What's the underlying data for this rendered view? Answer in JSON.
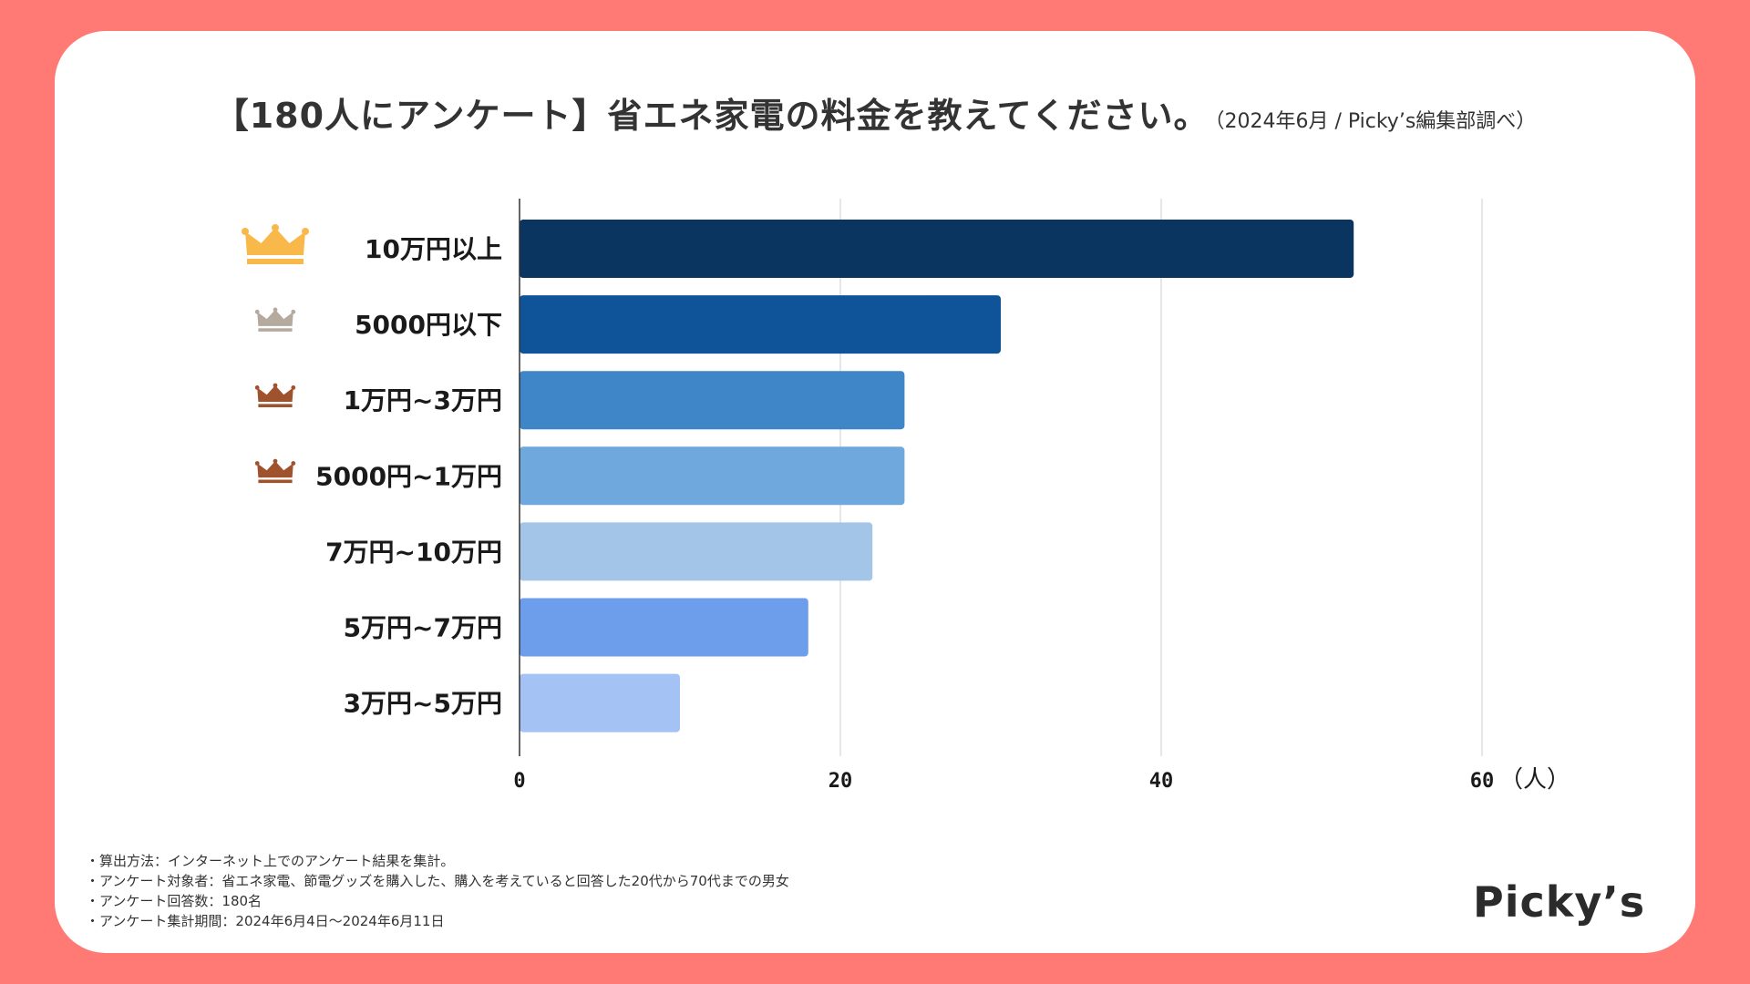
{
  "header": {
    "title": "【180人にアンケート】省エネ家電の料金を教えてください。",
    "subtitle": "（2024年6月 / Picky’s編集部調べ）"
  },
  "chart_data": {
    "type": "bar",
    "orientation": "horizontal",
    "title": "【180人にアンケート】省エネ家電の料金を教えてください。",
    "categories": [
      "10万円以上",
      "5000円以下",
      "1万円~3万円",
      "5000円~1万円",
      "7万円~10万円",
      "5万円~7万円",
      "3万円~5万円"
    ],
    "values": [
      52,
      30,
      24,
      24,
      22,
      18,
      10
    ],
    "bar_colors": [
      "#0a3560",
      "#0f5498",
      "#3f86c9",
      "#6fa8dc",
      "#a3c6e8",
      "#6d9eeb",
      "#a4c2f4"
    ],
    "xlim": [
      0,
      60
    ],
    "xticks": [
      0,
      20,
      40,
      60
    ],
    "xlabel": "（人）",
    "grid": true,
    "rank_icons": [
      {
        "rank": 1,
        "icon": "crown-gold-icon",
        "color": "#f9b94a"
      },
      {
        "rank": 2,
        "icon": "crown-silver-icon",
        "color": "#b5aa9e"
      },
      {
        "rank": 3,
        "icon": "crown-bronze-icon",
        "color": "#a0522d"
      },
      {
        "rank": 3,
        "icon": "crown-bronze-icon",
        "color": "#a0522d"
      }
    ]
  },
  "notes": [
    "・算出方法：インターネット上でのアンケート結果を集計。",
    "・アンケート対象者：省エネ家電、節電グッズを購入した、購入を考えていると回答した20代から70代までの男女",
    "・アンケート回答数：180名",
    "・アンケート集計期間：2024年6月4日〜2024年6月11日"
  ],
  "logo": {
    "text": "Picky’s"
  }
}
